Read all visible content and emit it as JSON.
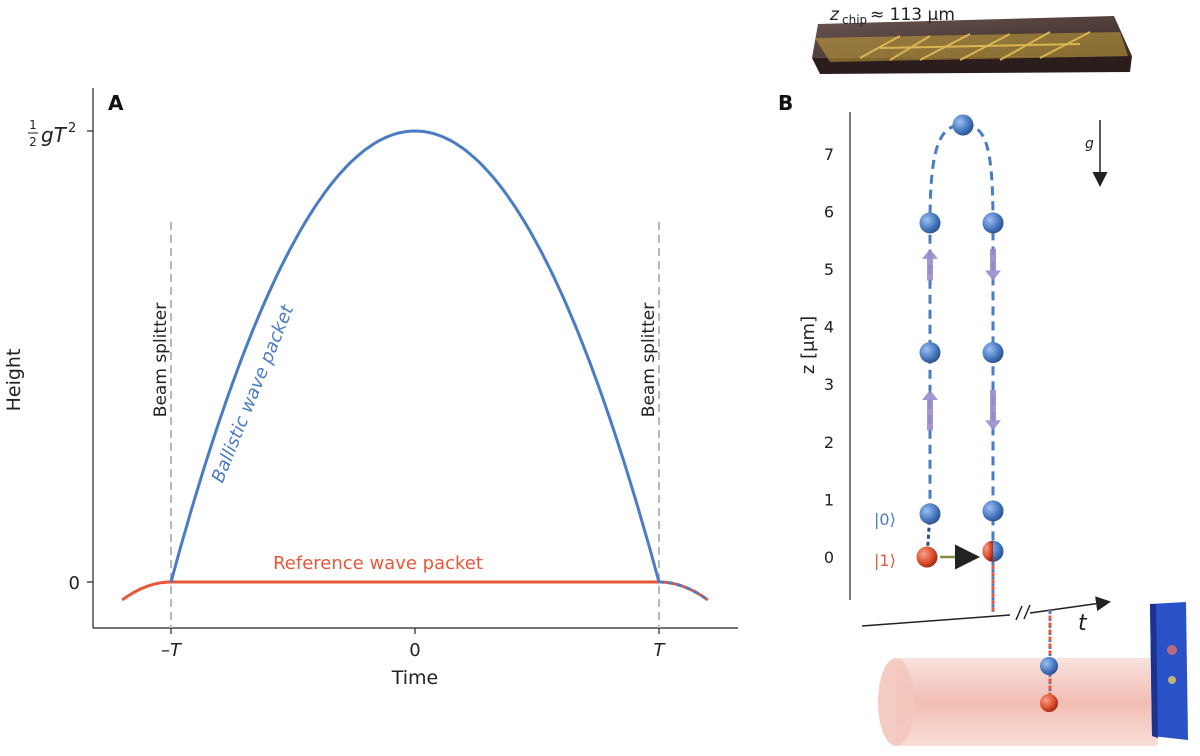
{
  "colors": {
    "ballistic": "#4a7cc4",
    "reference": "#e8573a",
    "beam_splitter_line": "#b8b8b8",
    "arrow_purple": "#9a8ccc",
    "axis": "#222222",
    "chip_gold": "#c9a23a",
    "chip_dark": "#3a2a28"
  },
  "panel_a": {
    "label": "A",
    "ylabel": "Height",
    "xlabel": "Time",
    "ytick_top": "½gT²",
    "ytick_zero": "0",
    "xticks": [
      "–T",
      "0",
      "T"
    ],
    "beam_splitter_left": "Beam splitter",
    "beam_splitter_right": "Beam splitter",
    "ballistic_label": "Ballistic wave packet",
    "reference_label": "Reference wave packet"
  },
  "panel_b": {
    "label": "B",
    "chip_label": "z",
    "chip_sub": "chip",
    "chip_value": " ≈ 113 μm",
    "ylabel": "z [μm]",
    "t_label": "t",
    "g_label": "g",
    "state0": "|0⟩",
    "state1": "|1⟩",
    "yticks": [
      "0",
      "1",
      "2",
      "3",
      "4",
      "5",
      "6",
      "7"
    ]
  },
  "chart_data": [
    {
      "type": "line",
      "title": "",
      "xlabel": "Time",
      "ylabel": "Height",
      "x_ticks": [
        "–T",
        "0",
        "T"
      ],
      "y_ticks": [
        "0",
        "½gT²"
      ],
      "xlim": [
        -1.2,
        1.2
      ],
      "ylim": [
        -0.05,
        1.0
      ],
      "series": [
        {
          "name": "Ballistic wave packet",
          "color": "#4a7cc4",
          "function": "height = 1 - t^2 for -1 <= t <= 1",
          "x": [
            -1.0,
            -0.75,
            -0.5,
            -0.25,
            0.0,
            0.25,
            0.5,
            0.75,
            1.0
          ],
          "y": [
            0.0,
            0.4375,
            0.75,
            0.9375,
            1.0,
            0.9375,
            0.75,
            0.4375,
            0.0
          ]
        },
        {
          "name": "Reference wave packet",
          "color": "#e8573a",
          "x": [
            -1.2,
            -1.1,
            -1.0,
            0.0,
            1.0,
            1.1,
            1.2
          ],
          "y": [
            -0.04,
            -0.01,
            0.0,
            0.0,
            0.0,
            -0.01,
            -0.04
          ]
        }
      ],
      "annotations": [
        "Beam splitter at t = -T",
        "Beam splitter at t = T"
      ]
    },
    {
      "type": "scatter",
      "title": "",
      "ylabel": "z [μm]",
      "xlabel": "t",
      "ylim": [
        -0.7,
        7.8
      ],
      "yticks": [
        0,
        1,
        2,
        3,
        4,
        5,
        6,
        7
      ],
      "series": [
        {
          "name": "|0⟩",
          "color": "#4a7cc4",
          "points_up": [
            0.75,
            3.55,
            5.8
          ],
          "apex": 7.5,
          "points_down": [
            5.8,
            3.55,
            0.8,
            0.1
          ]
        },
        {
          "name": "|1⟩",
          "color": "#e8573a",
          "points": [
            0.0,
            0.1
          ]
        }
      ]
    }
  ]
}
